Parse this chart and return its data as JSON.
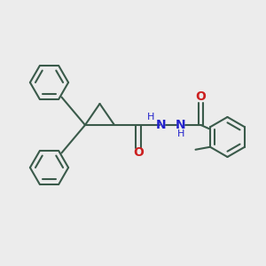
{
  "background_color": "#ececec",
  "bond_color": "#3a5a4a",
  "N_color": "#2222cc",
  "O_color": "#cc2020",
  "line_width": 1.5,
  "figsize": [
    3.0,
    3.0
  ],
  "dpi": 100,
  "xlim": [
    0,
    10
  ],
  "ylim": [
    0,
    10
  ]
}
